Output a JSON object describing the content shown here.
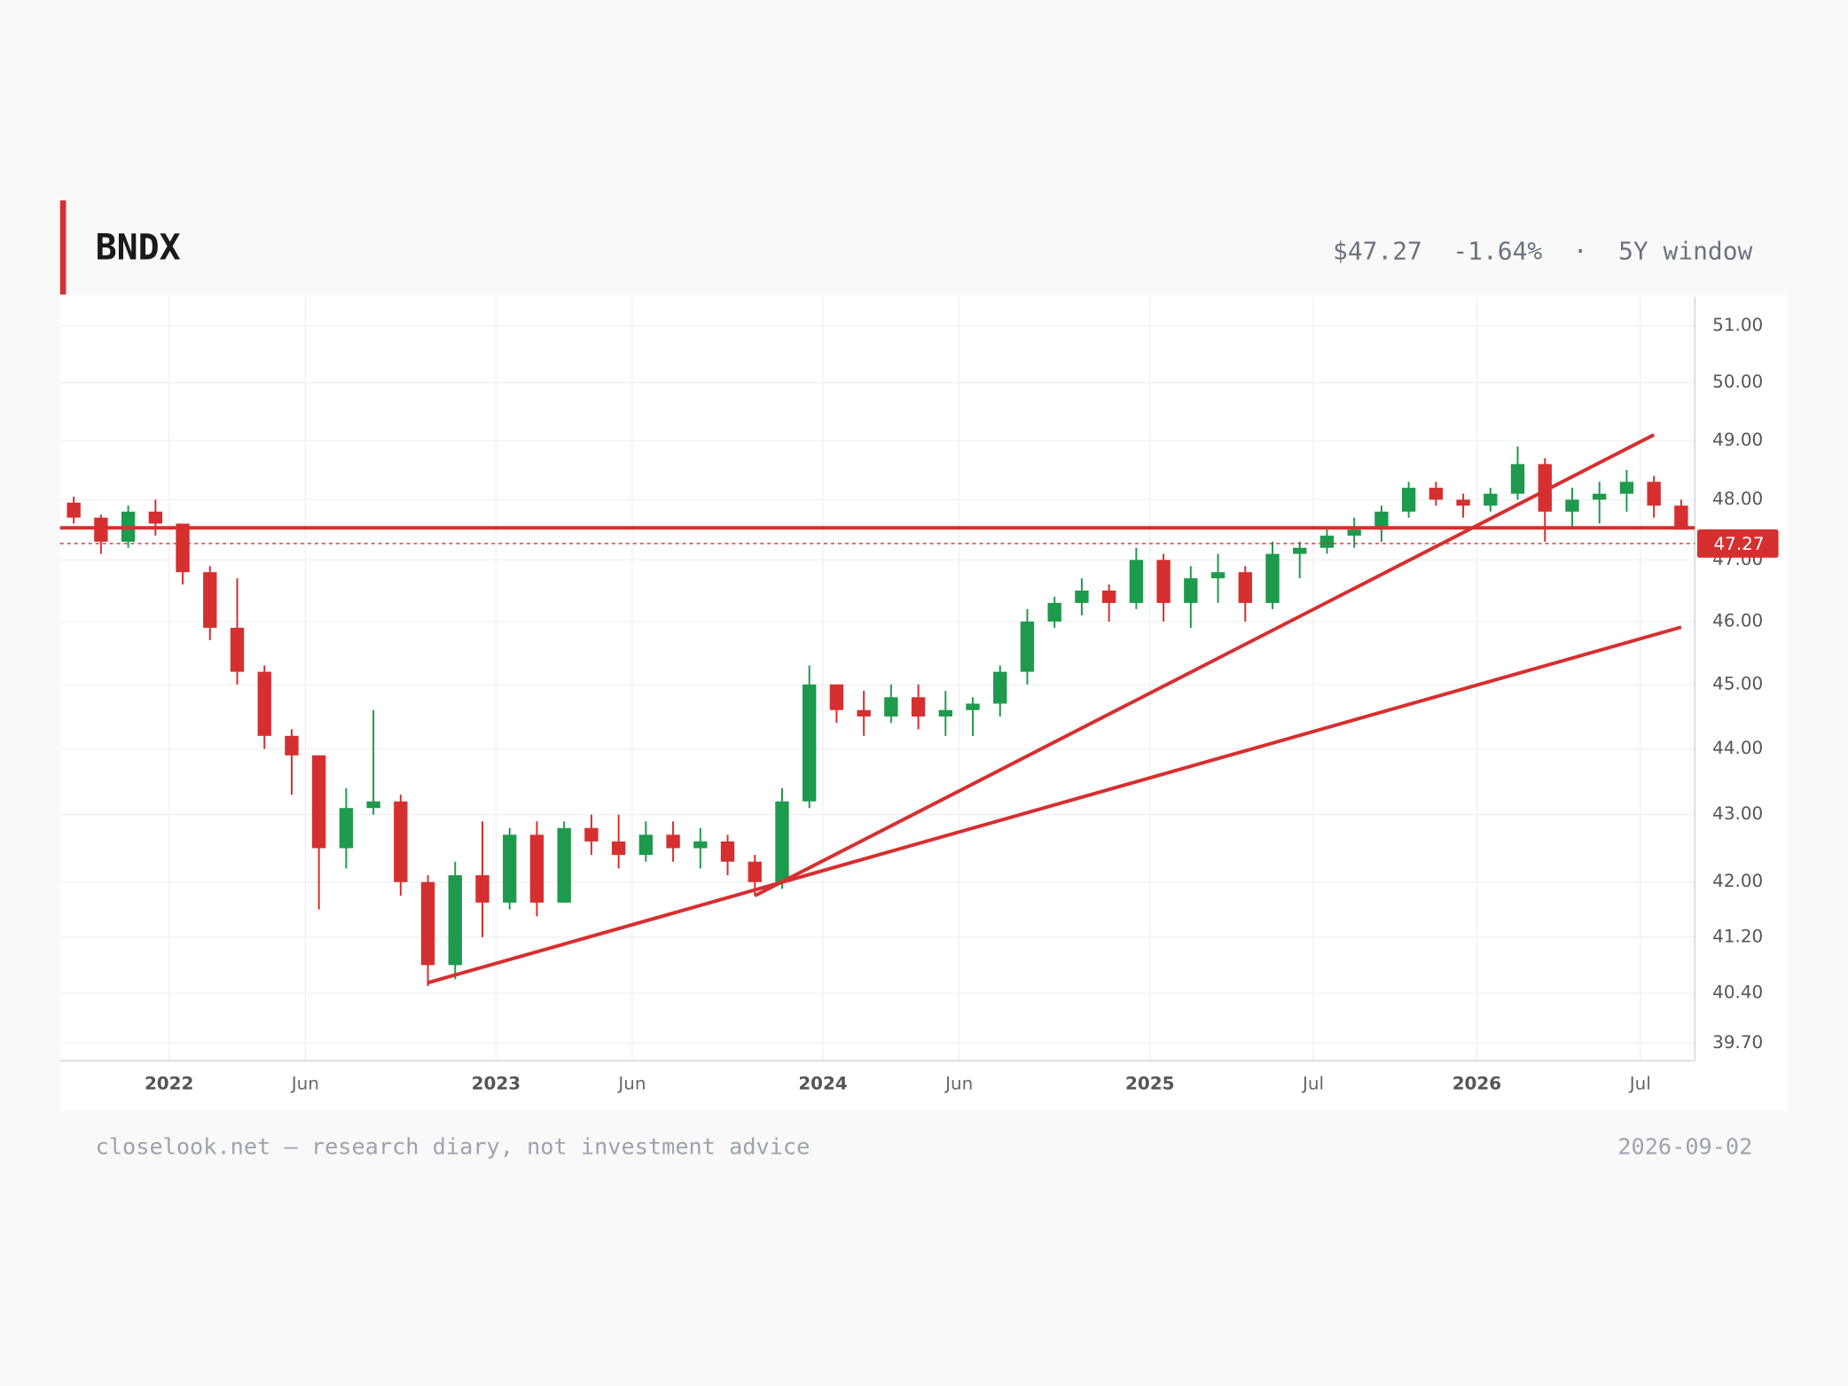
{
  "chart_data": {
    "type": "candlestick",
    "title": "BNDX",
    "price_label": "$47.27",
    "change_label": "-1.64%",
    "separator": "·",
    "window_label": "5Y window",
    "footer_left": "closelook.net — research diary, not investment advice",
    "footer_right": "2026-09-02",
    "log_scale": true,
    "grid": true,
    "up_color": "#1e9a4c",
    "down_color": "#d62f2f",
    "line_color": "#d62f2f",
    "xlim": [
      "2021-09",
      "2026-08"
    ],
    "xticks": [
      {
        "value": "2022-01",
        "label": "2022"
      },
      {
        "value": "2022-06",
        "label": "Jun"
      },
      {
        "value": "2023-01",
        "label": "2023"
      },
      {
        "value": "2023-06",
        "label": "Jun"
      },
      {
        "value": "2024-01",
        "label": "2024"
      },
      {
        "value": "2024-06",
        "label": "Jun"
      },
      {
        "value": "2025-01",
        "label": "2025"
      },
      {
        "value": "2025-07",
        "label": "Jul"
      },
      {
        "value": "2026-01",
        "label": "2026"
      },
      {
        "value": "2026-07",
        "label": "Jul"
      }
    ],
    "ylim": [
      39.46,
      51.52
    ],
    "yticks": [
      {
        "value": 39.7,
        "label": "39.70"
      },
      {
        "value": 40.4,
        "label": "40.40"
      },
      {
        "value": 41.2,
        "label": "41.20"
      },
      {
        "value": 42,
        "label": "42.00"
      },
      {
        "value": 43,
        "label": "43.00"
      },
      {
        "value": 44,
        "label": "44.00"
      },
      {
        "value": 45,
        "label": "45.00"
      },
      {
        "value": 46,
        "label": "46.00"
      },
      {
        "value": 47,
        "label": "47.00"
      },
      {
        "value": 48,
        "label": "48.00"
      },
      {
        "value": 49,
        "label": "49.00"
      },
      {
        "value": 50,
        "label": "50.00"
      },
      {
        "value": 51,
        "label": "51.00"
      }
    ],
    "x": [
      "2021-09",
      "2021-10",
      "2021-11",
      "2021-12",
      "2022-01",
      "2022-02",
      "2022-03",
      "2022-04",
      "2022-05",
      "2022-06",
      "2022-07",
      "2022-08",
      "2022-09",
      "2022-10",
      "2022-11",
      "2022-12",
      "2023-01",
      "2023-02",
      "2023-03",
      "2023-04",
      "2023-05",
      "2023-06",
      "2023-07",
      "2023-08",
      "2023-09",
      "2023-10",
      "2023-11",
      "2023-12",
      "2024-01",
      "2024-02",
      "2024-03",
      "2024-04",
      "2024-05",
      "2024-06",
      "2024-07",
      "2024-08",
      "2024-09",
      "2024-10",
      "2024-11",
      "2024-12",
      "2025-01",
      "2025-02",
      "2025-03",
      "2025-04",
      "2025-05",
      "2025-06",
      "2025-07",
      "2025-08",
      "2025-09",
      "2025-10",
      "2025-11",
      "2025-12",
      "2026-01",
      "2026-02",
      "2026-03",
      "2026-04",
      "2026-05",
      "2026-06",
      "2026-07",
      "2026-08"
    ],
    "open": [
      47.95,
      47.7,
      47.3,
      47.8,
      47.6,
      46.8,
      45.9,
      45.2,
      44.2,
      43.9,
      42.5,
      43.1,
      43.2,
      42.0,
      40.8,
      42.1,
      41.7,
      42.7,
      41.7,
      42.8,
      42.6,
      42.4,
      42.7,
      42.5,
      42.6,
      42.3,
      42.0,
      43.2,
      45.0,
      44.6,
      44.5,
      44.8,
      44.5,
      44.6,
      44.7,
      45.2,
      46.0,
      46.3,
      46.5,
      46.3,
      47.0,
      46.3,
      46.7,
      46.8,
      46.3,
      47.1,
      47.2,
      47.4,
      47.5,
      47.8,
      48.2,
      48.0,
      47.9,
      48.1,
      48.6,
      47.8,
      48.0,
      48.1,
      48.3,
      47.9
    ],
    "high": [
      48.05,
      47.75,
      47.9,
      48.0,
      47.6,
      46.9,
      46.7,
      45.3,
      44.3,
      43.9,
      43.4,
      44.6,
      43.3,
      42.1,
      42.3,
      42.9,
      42.8,
      42.9,
      42.9,
      43.0,
      43.0,
      42.9,
      42.9,
      42.8,
      42.7,
      42.4,
      43.4,
      45.3,
      45.0,
      44.9,
      45.0,
      45.0,
      44.9,
      44.8,
      45.3,
      46.2,
      46.4,
      46.7,
      46.6,
      47.2,
      47.1,
      46.9,
      47.1,
      46.9,
      47.3,
      47.3,
      47.5,
      47.7,
      47.9,
      48.3,
      48.3,
      48.1,
      48.2,
      48.9,
      48.7,
      48.2,
      48.3,
      48.5,
      48.4,
      48.0
    ],
    "low": [
      47.6,
      47.1,
      47.2,
      47.4,
      46.6,
      45.7,
      45.0,
      44.0,
      43.3,
      41.6,
      42.2,
      43.0,
      41.8,
      40.5,
      40.6,
      41.2,
      41.6,
      41.5,
      41.7,
      42.4,
      42.2,
      42.3,
      42.3,
      42.2,
      42.1,
      41.8,
      41.9,
      43.1,
      44.4,
      44.2,
      44.4,
      44.3,
      44.2,
      44.2,
      44.5,
      45.0,
      45.9,
      46.1,
      46.0,
      46.2,
      46.0,
      45.9,
      46.3,
      46.0,
      46.2,
      46.7,
      47.1,
      47.2,
      47.3,
      47.7,
      47.9,
      47.7,
      47.8,
      48.0,
      47.3,
      47.5,
      47.6,
      47.8,
      47.7,
      47.5
    ],
    "close": [
      47.7,
      47.3,
      47.8,
      47.6,
      46.8,
      45.9,
      45.2,
      44.2,
      43.9,
      42.5,
      43.1,
      43.2,
      42.0,
      40.8,
      42.1,
      41.7,
      42.7,
      41.7,
      42.8,
      42.6,
      42.4,
      42.7,
      42.5,
      42.6,
      42.3,
      42.0,
      43.2,
      45.0,
      44.6,
      44.5,
      44.8,
      44.5,
      44.6,
      44.7,
      45.2,
      46.0,
      46.3,
      46.5,
      46.3,
      47.0,
      46.3,
      46.7,
      46.8,
      46.3,
      47.1,
      47.2,
      47.4,
      47.5,
      47.8,
      48.2,
      48.0,
      47.9,
      48.1,
      48.6,
      47.8,
      48.0,
      48.1,
      48.3,
      47.9,
      47.5
    ],
    "last_price": {
      "value": 47.27,
      "label": "47.27"
    },
    "hline": 47.53,
    "trendlines": [
      {
        "x": [
          "2022-10",
          "2026-08"
        ],
        "y": [
          40.55,
          45.91
        ]
      },
      {
        "x": [
          "2023-10",
          "2026-07"
        ],
        "y": [
          41.8,
          49.1
        ]
      }
    ]
  }
}
